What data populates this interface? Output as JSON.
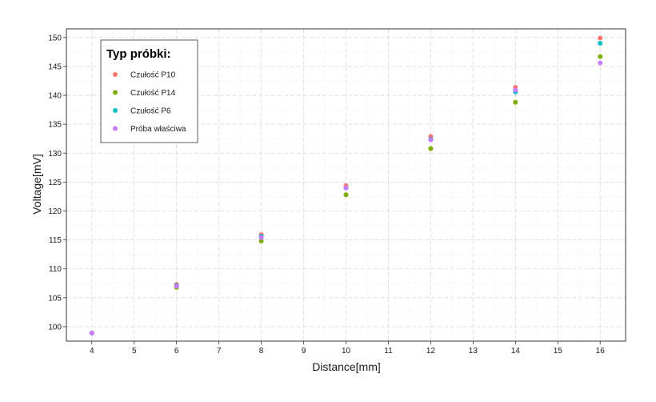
{
  "chart_data": {
    "type": "scatter",
    "xlabel": "Distance[mm]",
    "ylabel": "Voltage[mV]",
    "xlim": [
      3.4,
      16.6
    ],
    "ylim": [
      97.5,
      151.5
    ],
    "x_ticks": [
      4,
      5,
      6,
      7,
      8,
      9,
      10,
      11,
      12,
      13,
      14,
      15,
      16
    ],
    "y_ticks": [
      100,
      105,
      110,
      115,
      120,
      125,
      130,
      135,
      140,
      145,
      150
    ],
    "grid": true,
    "legend_title": "Typ próbki:",
    "legend_position": "top-left",
    "series": [
      {
        "name": "Czułość P10",
        "color": "#F8766D",
        "points": [
          [
            4,
            98.9
          ],
          [
            6,
            107.3
          ],
          [
            8,
            115.9
          ],
          [
            10,
            124.4
          ],
          [
            12,
            132.9
          ],
          [
            14,
            141.4
          ],
          [
            16,
            149.9
          ]
        ]
      },
      {
        "name": "Czułość P14",
        "color": "#7CAE00",
        "points": [
          [
            4,
            98.9
          ],
          [
            6,
            106.8
          ],
          [
            8,
            114.8
          ],
          [
            10,
            122.8
          ],
          [
            12,
            130.8
          ],
          [
            14,
            138.8
          ],
          [
            16,
            146.7
          ]
        ]
      },
      {
        "name": "Czułość P6",
        "color": "#00BFC4",
        "points": [
          [
            4,
            98.9
          ],
          [
            6,
            107.1
          ],
          [
            8,
            115.6
          ],
          [
            10,
            124.0
          ],
          [
            12,
            132.4
          ],
          [
            14,
            140.6
          ],
          [
            16,
            149.0
          ]
        ]
      },
      {
        "name": "Próba właściwa",
        "color": "#C77CFF",
        "points": [
          [
            4,
            98.9
          ],
          [
            6,
            107.0
          ],
          [
            8,
            115.4
          ],
          [
            10,
            124.0
          ],
          [
            12,
            132.3
          ],
          [
            14,
            140.9
          ],
          [
            16,
            145.6
          ]
        ]
      }
    ]
  }
}
